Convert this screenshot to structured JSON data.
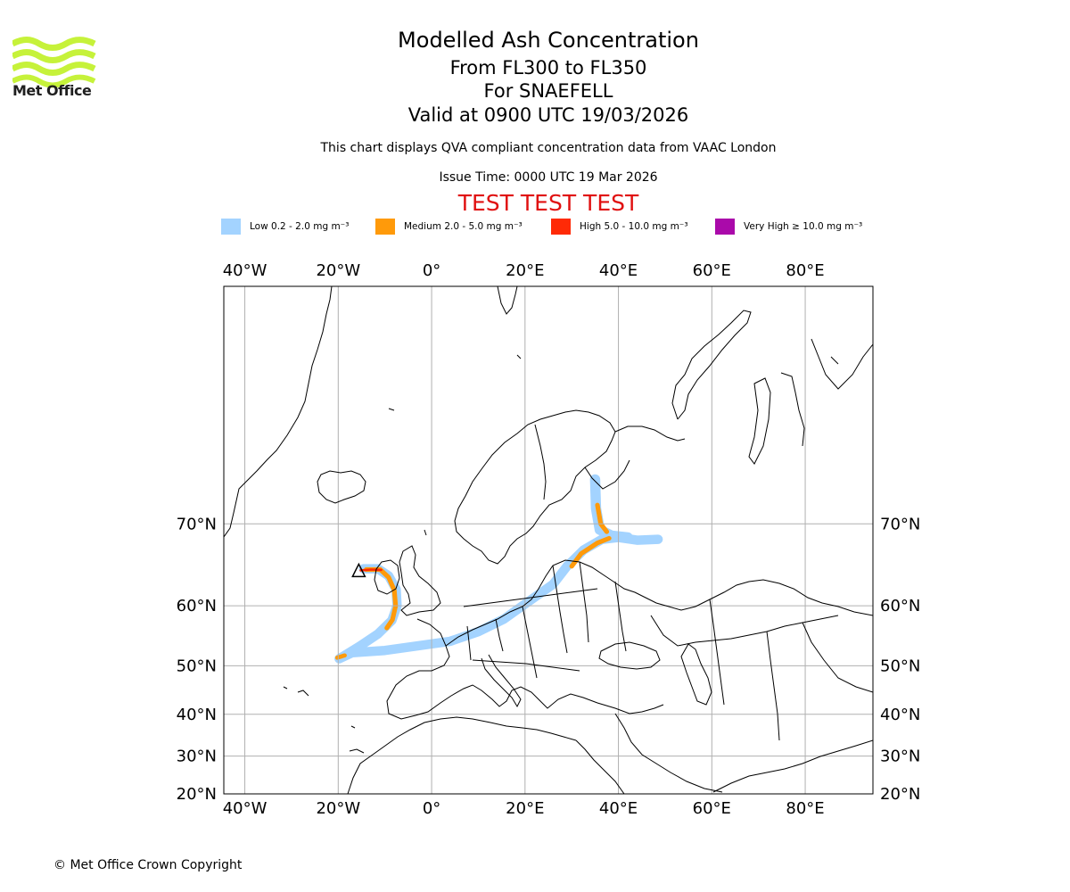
{
  "brand": {
    "name": "Met Office",
    "logo_color": "#c6f23a",
    "copyright": "© Met Office Crown Copyright"
  },
  "title": {
    "main": "Modelled Ash Concentration",
    "levels": "From FL300 to FL350",
    "volcano": "For SNAEFELL",
    "valid": "Valid at 0900 UTC 19/03/2026",
    "note": "This chart displays QVA compliant concentration data from VAAC London",
    "issue": "Issue Time: 0000 UTC 19 Mar 2026",
    "test_banner": "TEST TEST TEST",
    "test_color": "#e01010"
  },
  "legend": [
    {
      "label": "Low 0.2 - 2.0 mg m⁻³",
      "color": "#a3d3ff"
    },
    {
      "label": "Medium 2.0 - 5.0 mg m⁻³",
      "color": "#ff9a0a"
    },
    {
      "label": "High 5.0 - 10.0 mg m⁻³",
      "color": "#ff2a06"
    },
    {
      "label": "Very High ≥ 10.0 mg m⁻³",
      "color": "#aa0aaa"
    }
  ],
  "map": {
    "lon_range": [
      -44.5,
      94.5
    ],
    "lat_range": [
      20,
      84
    ],
    "lon_ticks": [
      {
        "value": -40,
        "label": "40°W"
      },
      {
        "value": -20,
        "label": "20°W"
      },
      {
        "value": 0,
        "label": "0°"
      },
      {
        "value": 20,
        "label": "20°E"
      },
      {
        "value": 40,
        "label": "40°E"
      },
      {
        "value": 60,
        "label": "60°E"
      },
      {
        "value": 80,
        "label": "80°E"
      }
    ],
    "lat_ticks": [
      {
        "value": 70,
        "label": "70°N"
      },
      {
        "value": 60,
        "label": "60°N"
      },
      {
        "value": 50,
        "label": "50°N"
      },
      {
        "value": 40,
        "label": "40°N"
      },
      {
        "value": 30,
        "label": "30°N"
      },
      {
        "value": 20,
        "label": "20°N"
      }
    ],
    "volcano": {
      "name": "SNAEFELL",
      "lon": -15.6,
      "lat": 64.8
    },
    "ash_plumes": [
      {
        "level": "Low",
        "color": "#a3d3ff",
        "width_deg": 2.0,
        "path": [
          [
            -14.6,
            65.0
          ],
          [
            -11.5,
            65.0
          ],
          [
            -9.2,
            64.1
          ],
          [
            -7.6,
            62.3
          ],
          [
            -7.4,
            60.0
          ],
          [
            -8.5,
            57.8
          ],
          [
            -11.5,
            55.6
          ],
          [
            -15.5,
            53.5
          ],
          [
            -19.8,
            51.3
          ],
          [
            -17.0,
            52.4
          ],
          [
            -10.0,
            52.8
          ],
          [
            -3.0,
            53.6
          ],
          [
            4.0,
            54.4
          ],
          [
            10.0,
            56.0
          ],
          [
            15.5,
            58.0
          ],
          [
            20.5,
            60.5
          ],
          [
            26.0,
            63.0
          ],
          [
            29.0,
            65.3
          ],
          [
            32.5,
            67.2
          ],
          [
            36.5,
            68.4
          ],
          [
            40.0,
            68.6
          ],
          [
            44.0,
            68.3
          ],
          [
            48.5,
            68.4
          ]
        ]
      },
      {
        "level": "Low",
        "color": "#a3d3ff",
        "width_deg": 2.2,
        "path": [
          [
            35.0,
            74.0
          ],
          [
            35.2,
            71.5
          ],
          [
            36.0,
            69.4
          ],
          [
            38.5,
            68.8
          ],
          [
            42.0,
            68.6
          ]
        ]
      },
      {
        "level": "Medium",
        "color": "#ff9a0a",
        "width_deg": 1.0,
        "path": [
          [
            -14.0,
            64.9
          ],
          [
            -11.0,
            64.9
          ],
          [
            -9.2,
            63.9
          ],
          [
            -8.0,
            62.2
          ],
          [
            -7.7,
            60.0
          ],
          [
            -8.4,
            57.9
          ],
          [
            -9.6,
            56.6
          ]
        ]
      },
      {
        "level": "Medium",
        "color": "#ff9a0a",
        "width_deg": 0.9,
        "path": [
          [
            -20.2,
            51.5
          ],
          [
            -18.6,
            51.9
          ]
        ]
      },
      {
        "level": "Medium",
        "color": "#ff9a0a",
        "width_deg": 1.0,
        "path": [
          [
            30.0,
            65.3
          ],
          [
            32.0,
            66.8
          ],
          [
            35.5,
            68.0
          ],
          [
            38.0,
            68.5
          ]
        ]
      },
      {
        "level": "Medium",
        "color": "#ff9a0a",
        "width_deg": 1.0,
        "path": [
          [
            35.5,
            71.8
          ],
          [
            36.2,
            70.0
          ],
          [
            37.5,
            69.2
          ]
        ]
      },
      {
        "level": "High",
        "color": "#ff2a06",
        "width_deg": 0.5,
        "path": [
          [
            -15.2,
            64.8
          ],
          [
            -13.0,
            64.9
          ],
          [
            -10.8,
            64.85
          ]
        ]
      }
    ]
  }
}
